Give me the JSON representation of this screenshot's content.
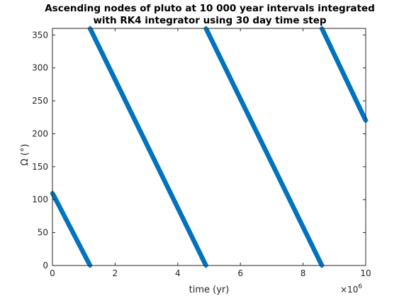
{
  "chart_data": {
    "type": "scatter",
    "title_line1": "Ascending nodes of pluto at 10 000 year intervals integrated",
    "title_line2": "with RK4 integrator using 30 day time step",
    "xlabel": "time (yr)",
    "ylabel": "Ω (°)",
    "x_exponent_label": "×10",
    "x_exponent": "6",
    "xlim": [
      0,
      10
    ],
    "ylim": [
      0,
      360
    ],
    "x_scale": 1000000,
    "x_step": 0.01,
    "grid": false,
    "legend": "none",
    "marker": "diamond",
    "color": "#0072bd",
    "x_ticks": [
      "0",
      "2",
      "4",
      "6",
      "8",
      "10"
    ],
    "y_ticks": [
      "0",
      "50",
      "100",
      "150",
      "200",
      "250",
      "300",
      "350"
    ],
    "series": [
      {
        "segments": [
          {
            "x_start": 0.0,
            "x_end": 1.2,
            "y_start": 110,
            "y_end": 0
          },
          {
            "x_start": 1.2,
            "x_end": 4.9,
            "y_start": 360,
            "y_end": 0
          },
          {
            "x_start": 4.9,
            "x_end": 8.6,
            "y_start": 360,
            "y_end": 0
          },
          {
            "x_start": 8.6,
            "x_end": 10.0,
            "y_start": 360,
            "y_end": 220
          }
        ]
      }
    ]
  }
}
